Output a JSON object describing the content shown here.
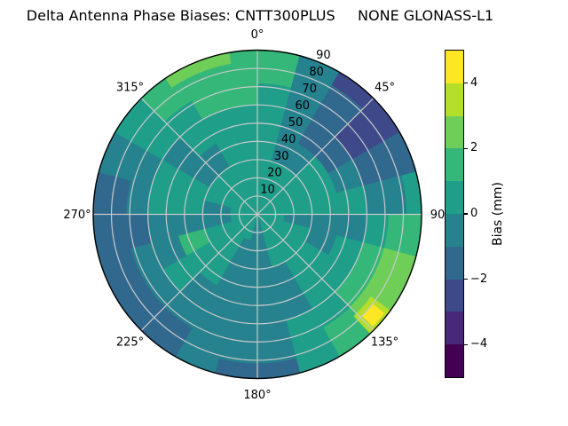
{
  "chart_data": {
    "type": "heatmap",
    "projection": "polar",
    "title": "Delta Antenna Phase Biases: CNTT300PLUS     NONE GLONASS-L1",
    "azimuth_ticks": [
      {
        "deg": 0,
        "label": "0°"
      },
      {
        "deg": 45,
        "label": "45°"
      },
      {
        "deg": 90,
        "label": "90"
      },
      {
        "deg": 135,
        "label": "135°"
      },
      {
        "deg": 180,
        "label": "180°"
      },
      {
        "deg": 225,
        "label": "225°"
      },
      {
        "deg": 270,
        "label": "270°"
      },
      {
        "deg": 315,
        "label": "315°"
      }
    ],
    "radial_ticks": [
      10,
      20,
      30,
      40,
      50,
      60,
      70,
      80,
      90
    ],
    "radial_axis_max": 90,
    "radial_label_angle_deg": 22.5,
    "colorbar": {
      "label": "Bias (mm)",
      "vmin": -5,
      "vmax": 5,
      "ticks": [
        4,
        2,
        0,
        -2,
        -4
      ],
      "tick_labels": [
        "4",
        "2",
        "0",
        "−2",
        "−4"
      ],
      "levels": [
        -5,
        -4,
        -3,
        -2,
        -1,
        0,
        1,
        2,
        3,
        4,
        5
      ],
      "colors": [
        "#440154",
        "#482878",
        "#3e4989",
        "#31688e",
        "#26828e",
        "#1f9e89",
        "#35b779",
        "#6ece58",
        "#b5de2b",
        "#fde725"
      ]
    },
    "field": {
      "units": "mm",
      "description": "Approximate bias value (mm) per polar cell; rings are zenith-angle bands, columns are 15-degree azimuth sectors clockwise from North",
      "ring_bounds": [
        0,
        15,
        30,
        45,
        60,
        72,
        82,
        90
      ],
      "az_step_deg": 15,
      "values": [
        [
          0.5,
          0.5,
          0.5,
          0.5,
          0.5,
          0.5,
          0.5,
          0.5,
          0.5,
          0.5,
          0.5,
          -0.5,
          -0.5,
          0.5,
          0.5,
          0.5,
          0.5,
          0.5,
          0.5,
          0.5,
          0.5,
          0.5,
          0.5,
          0.5
        ],
        [
          0.5,
          0.5,
          0.5,
          0.5,
          0.5,
          0.5,
          -0.5,
          0.5,
          0.5,
          0.5,
          0.5,
          -0.5,
          -0.5,
          -0.5,
          0.5,
          0.5,
          0.5,
          -0.5,
          -0.5,
          0.5,
          0.5,
          0.5,
          0.5,
          0.5
        ],
        [
          0.5,
          -0.5,
          -0.5,
          0.5,
          0.5,
          0.5,
          -0.5,
          -0.5,
          0.5,
          0.5,
          -0.5,
          -0.5,
          -0.5,
          -0.5,
          0.5,
          0.5,
          1.5,
          -0.5,
          0.5,
          0.5,
          -0.5,
          -0.5,
          0.5,
          0.5
        ],
        [
          0.5,
          -0.5,
          -1.5,
          -1.5,
          -0.5,
          0.5,
          -0.5,
          0.5,
          0.5,
          0.5,
          -0.5,
          -0.5,
          -0.5,
          -0.5,
          -0.5,
          0.5,
          -0.5,
          -0.5,
          0.5,
          0.5,
          -0.5,
          0.5,
          0.5,
          0.5
        ],
        [
          0.5,
          -0.5,
          -1.5,
          -2.5,
          -1.5,
          -0.5,
          0.5,
          1.5,
          1.5,
          0.5,
          0.5,
          -0.5,
          -0.5,
          -0.5,
          -0.5,
          -0.5,
          -0.5,
          -1.5,
          -0.5,
          -0.5,
          0.5,
          0.5,
          1.5,
          1.5
        ],
        [
          1.5,
          -0.5,
          -1.5,
          -2.5,
          -1.5,
          -0.5,
          1.5,
          2.5,
          2.5,
          1.5,
          0.5,
          -0.5,
          -0.5,
          -0.5,
          -1.5,
          -1.5,
          -1.5,
          -1.5,
          -1.5,
          -0.5,
          0.5,
          1.5,
          1.5,
          1.5
        ],
        [
          1.5,
          -0.5,
          -2.5,
          -2.5,
          -1.5,
          0.5,
          1.5,
          2.5,
          2.5,
          1.5,
          0.5,
          -1.5,
          -1.5,
          -0.5,
          -1.5,
          -1.5,
          -1.5,
          -1.5,
          -1.5,
          -0.5,
          0.5,
          1.5,
          1.5,
          1.5
        ]
      ]
    },
    "highlights": [
      {
        "az": [
          326,
          350
        ],
        "r": [
          84,
          90
        ],
        "value": 2.5
      },
      {
        "az": [
          126,
          136.5
        ],
        "r": [
          77,
          90
        ],
        "value": 3.5
      },
      {
        "az": [
          128,
          134
        ],
        "r": [
          80,
          88
        ],
        "value": 4.5
      }
    ],
    "styles": {
      "grid_color": "#c8c9cb",
      "outline_color": "#000000",
      "background": "#ffffff",
      "text_color": "#000000"
    }
  }
}
